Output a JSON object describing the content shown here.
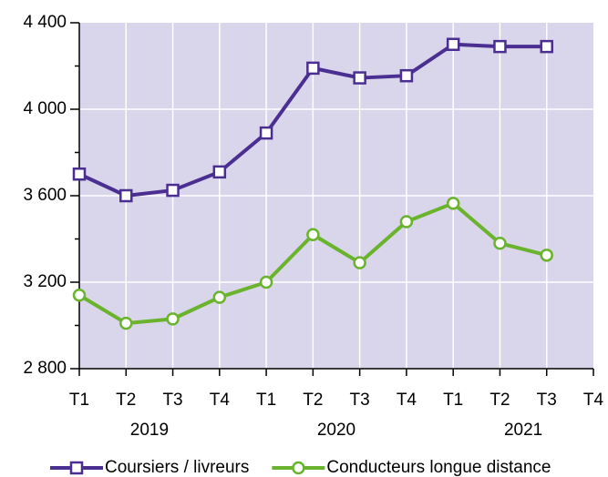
{
  "chart_data": {
    "type": "line",
    "categories": [
      "T1",
      "T2",
      "T3",
      "T4",
      "T1",
      "T2",
      "T3",
      "T4",
      "T1",
      "T2",
      "T3",
      "T4"
    ],
    "groups": [
      "2019",
      "2020",
      "2021"
    ],
    "series": [
      {
        "name": "Coursiers / livreurs",
        "color": "#4b2e91",
        "marker": "square",
        "values": [
          3700,
          3600,
          3625,
          3710,
          3890,
          4190,
          4145,
          4155,
          4300,
          4290,
          4290,
          null
        ]
      },
      {
        "name": "Conducteurs longue distance",
        "color": "#6ab42d",
        "marker": "circle",
        "values": [
          3140,
          3010,
          3030,
          3130,
          3200,
          3420,
          3290,
          3480,
          3565,
          3380,
          3325,
          null
        ]
      }
    ],
    "ylim": [
      2800,
      4400
    ],
    "yticks": [
      {
        "value": 2800,
        "label": "2 800"
      },
      {
        "value": 3200,
        "label": "3 200"
      },
      {
        "value": 3600,
        "label": "3 600"
      },
      {
        "value": 4000,
        "label": "4 000"
      },
      {
        "value": 4400,
        "label": "4 400"
      }
    ],
    "yminor_ticks": [
      3000,
      3400,
      3800,
      4200
    ],
    "grid": true,
    "background": "#d9d5ea",
    "legend": "bottom"
  }
}
